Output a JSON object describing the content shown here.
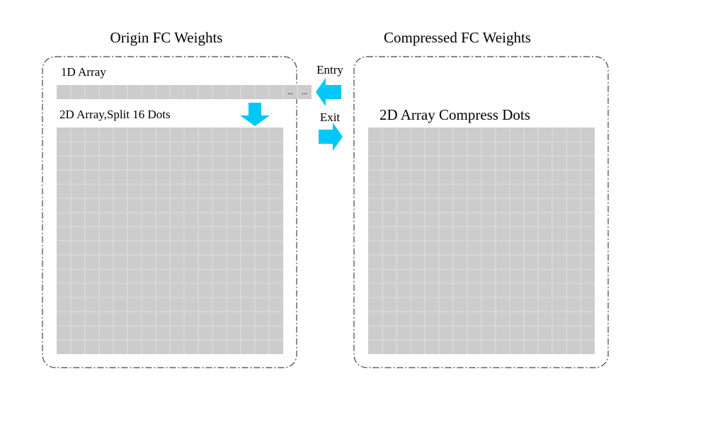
{
  "left_panel": {
    "title": "Origin FC Weights",
    "array_1d_label": "1D Array",
    "array_1d_ellipsis": [
      "...",
      "..."
    ],
    "array_2d_label": "2D Array,Split 16 Dots"
  },
  "right_panel": {
    "title": "Compressed FC Weights",
    "array_label": "2D Array Compress Dots"
  },
  "arrows": {
    "entry_label": "Entry",
    "exit_label": "Exit"
  },
  "colors": {
    "cell_fill": "#cccccc",
    "grid_line": "#e0e0e0",
    "arrow": "#00c8f8",
    "border": "#444444"
  }
}
